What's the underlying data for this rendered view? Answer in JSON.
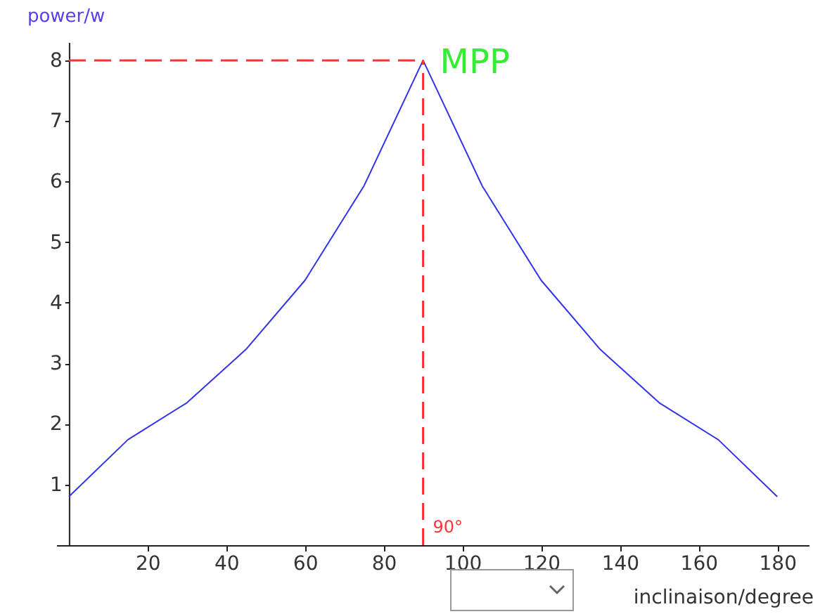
{
  "chart_data": {
    "type": "line",
    "xlabel": "inclinaison/degree",
    "ylabel": "power/w",
    "x": [
      0,
      15,
      30,
      45,
      60,
      75,
      90,
      105,
      120,
      135,
      150,
      165,
      180
    ],
    "series": [
      {
        "color": "#3333ee",
        "values": [
          0.8,
          1.74,
          2.35,
          3.23,
          4.37,
          5.93,
          8,
          5.93,
          4.37,
          3.23,
          2.35,
          1.74,
          0.8
        ]
      }
    ],
    "xlim": [
      -3.2,
      188
    ],
    "xticks": [
      20,
      40,
      60,
      80,
      100,
      120,
      140,
      160,
      180
    ],
    "ylim": [
      0,
      8.3
    ],
    "yticks": [
      1,
      2,
      3,
      4,
      5,
      6,
      7,
      8
    ],
    "ref_lines": [
      {
        "axis": "y",
        "value": 8,
        "label": null,
        "color": "#ff3333",
        "line_style": "dashed"
      },
      {
        "axis": "x",
        "value": 90,
        "label": "90°",
        "color": "#ff3333",
        "line_style": "dashed"
      }
    ],
    "annotations": [
      {
        "text": "MPP",
        "x": 90,
        "y": 8
      }
    ],
    "grid": false
  }
}
